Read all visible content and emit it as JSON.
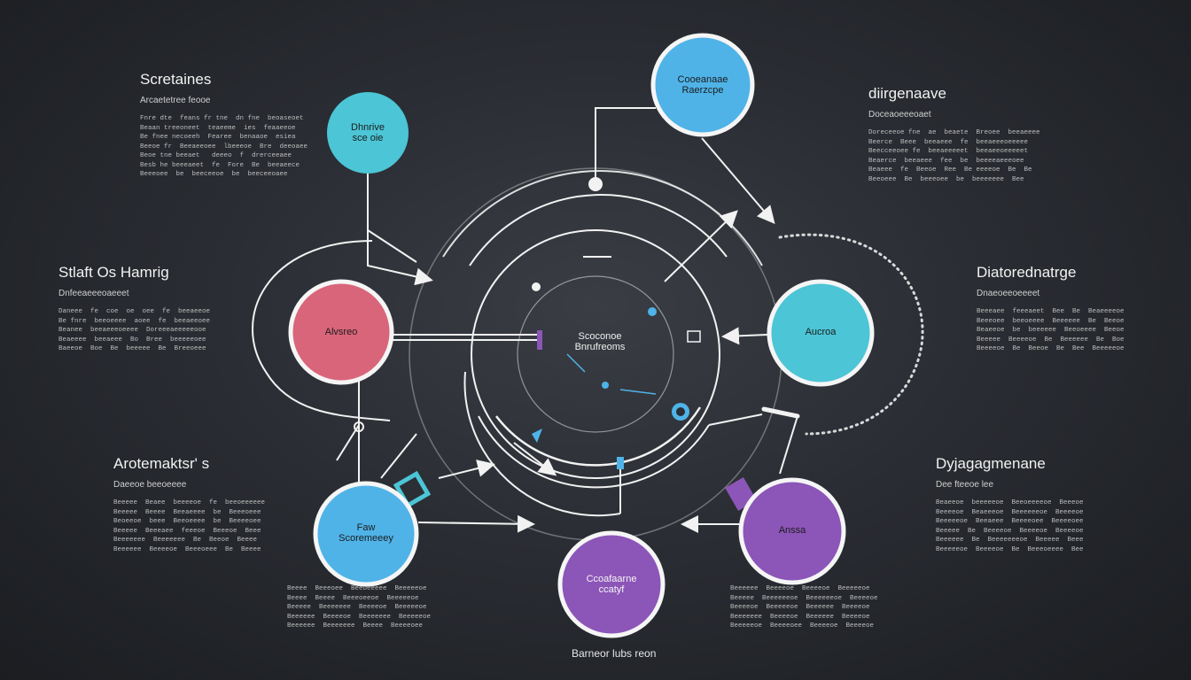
{
  "colors": {
    "background": "#2a2d33",
    "line": "#f2f2f2",
    "node_blue": "#4fb3e8",
    "node_teal": "#4cc5d6",
    "node_pink": "#d9657a",
    "node_purple": "#8c55b8"
  },
  "blocks": {
    "top_left": {
      "title": "Scretaines",
      "subtitle": "Arcaetetree feooe",
      "lines": [
        "Fnre dte  feans fr tne  dn fne  beoaseoet",
        "Beaan treeoneet  teaeeme  ies  feaaeeoe",
        "Be fnee necoeeh  Fearee  benaaoe  esiea",
        "Beeoe fr  Beeaeeoee  lbeeeoe  Bre  deeoaee",
        "Beoe tne beeaet   deeeo  f  drerceeaee",
        "Besb he beeeaeet  fe  Fore  Be  beeaeece",
        "Beeeoee  be  beeceeoe  be  beeceeoaee"
      ]
    },
    "top_right": {
      "title": "diirgenaave",
      "subtitle": "Doceaoeeeoaet",
      "lines": [
        "Doreceeoe fne  ae  beaete  Breoee  beeaeeee",
        "Beerce  Beee  beeaeee  fe  beeaeeeoeeeee",
        "Beecceeoee fe  beeaeeeeet  beeaeeoeeeeet",
        "Beaerce  beeaeee  fee  be  beeeeaeeeoee",
        "Beaeee  fe  Beeoe  Ree  Be eeeeoe  Be  Be",
        "Beeoeee  Be  beeeoee  be  beeeeeee  Bee"
      ]
    },
    "mid_left": {
      "title": "Stlaft Os Hamrig",
      "subtitle": "Dnfeeaeeeoaeeet",
      "lines": [
        "Daneee  fe  coe  oe  oee  fe  beeaeeoe",
        "Be fnre  beeoeeee  aoee  fe  beeaeeoee",
        "Beanee  beeaeeeoeeee  Doreeeaeeeeeooe",
        "Beaeeee  beeaeee  Bo  Bree  beeeeeoee",
        "Baeeoe  Boe  Be  beeeee  Be  Breeoeee"
      ]
    },
    "mid_right": {
      "title": "Diatorednatrge",
      "subtitle": "Dnaeoeeoeeeet",
      "lines": [
        "Beeeaee  feeeaeet  Bee  Be  Beaeeeeoe",
        "Beeeoee  beeoeeee  Beeeeee  Be  Beeoe",
        "Beaeeoe  be  beeeeee  Beeoeeee  Beeoe",
        "Beeeee  Beeeeoe  Be  Beeeeee  Be  Boe",
        "Beeeeoe  Be  Beeoe  Be  Bee  Beeeeeoe"
      ]
    },
    "lower_left": {
      "title": "Arotemaktsr' s",
      "subtitle": "Daeeoe  beeoeeee",
      "lines": [
        "Beeeee  Beaee  beeeeoe  fe  beeoeeeeee",
        "Beeeee  Beeee  Beeaeeee  be  Beeeoeee",
        "Beoeeoe  beee  Beeoeeee  be  Beeeeoee",
        "Beeeee  Beeeaee  feeeoe  Beeeoe  Beee",
        "Beeeeeee  Beeeeeee  Be  Beeoe  Beeee",
        "Beeeeee  Beeeeoe  Beeeoeee  Be  Beeee"
      ]
    },
    "lower_right": {
      "title": "Dyjagagmenane",
      "subtitle": "Dee  fteeoe  lee",
      "lines": [
        "Beaeeoe  beeeeeoe  Beeoeeeeoe  Beeeoe",
        "Beeeeoe  Beaeeeoe  Beeeeeeoe  Beeeeoe",
        "Beeeeeoe  Beeaeee  Beeeeoee  Beeeeoee",
        "Beeeee  Be  Beeeeoe  Beeeeoe  Beeeeoe",
        "Beeeeee  Be  Beeeeeeeoe  Beeeee  Beee",
        "Beeeeeoe  Beeeeoe  Be  Beeeoeeee  Bee"
      ]
    },
    "bottom_left": {
      "lines": [
        "Beeee  Beeeoee  Beeoeeeee  Beeeeeoe",
        "Beeee  Beeee  Beeeoeeoe  Beeeeeoe",
        "Beeeee  Beeeeeee  Beeeeoe  Beeeeeoe",
        "Beeeeee  Beeeeoe  Beeeeeee  Beeeeeoe",
        "Beeeeee  Beeeeeee  Beeee  Beeeeoee"
      ]
    },
    "bottom_right": {
      "lines": [
        "Beeeeee  Beeeeoe  Beeeeoe  Beeeeeoe",
        "Beeeee  Beeeeeeoe  Beeeeeeoe  Beeeeoe",
        "Beeeeoe  Beeeeeoe  Beeeeee  Beeeeoe",
        "Beeeeeee  Beeeeoe  Beeeeee  Beeeeoe",
        "Beeeeeoe  Beeeeoee  Beeeeoe  Beeeeoe"
      ]
    }
  },
  "nodes": {
    "top_center": "Cooeanaae\nRaerzcpe",
    "top_left": "Dhnrive\nsce oie",
    "left_pink": "Alvsreo",
    "right_teal": "Aucroa",
    "bottom_left_blue": "Faw\nScoremeeey",
    "bottom_purple": "Ccoafaarne\nccatyf",
    "right_purple": "Anssa"
  },
  "center": "Scoconoe\nBnrufreoms",
  "footer": "Barneor lubs reon"
}
